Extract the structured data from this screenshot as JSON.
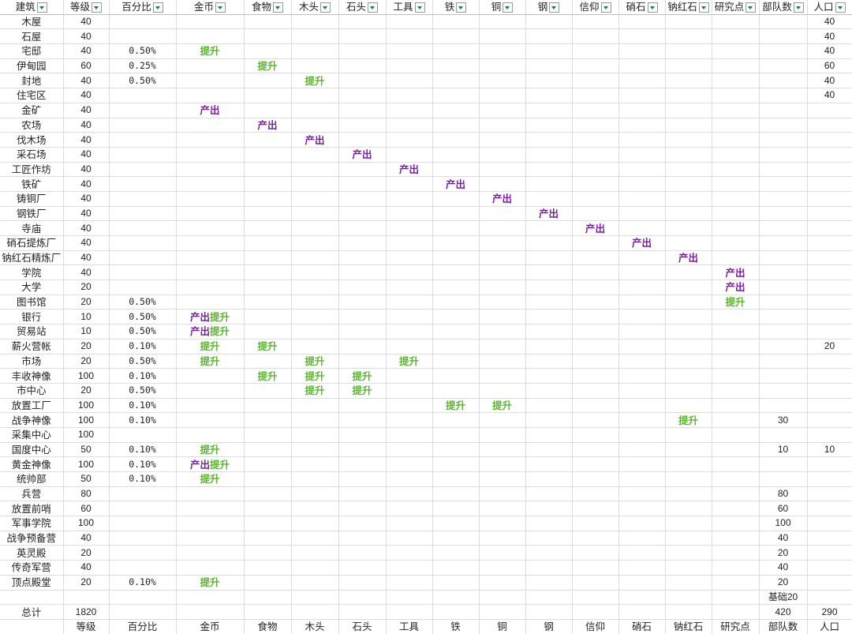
{
  "headers": [
    "建筑",
    "等级",
    "百分比",
    "金币",
    "食物",
    "木头",
    "石头",
    "工具",
    "铁",
    "铜",
    "钢",
    "信仰",
    "硝石",
    "钠红石",
    "研究点",
    "部队数",
    "人口"
  ],
  "footer_headers": [
    "",
    "等级",
    "百分比",
    "金币",
    "食物",
    "木头",
    "石头",
    "工具",
    "铁",
    "铜",
    "钢",
    "信仰",
    "硝石",
    "钠红石",
    "研究点",
    "部队数",
    "人口"
  ],
  "rows": [
    [
      "木屋",
      "40",
      "",
      "",
      "",
      "",
      "",
      "",
      "",
      "",
      "",
      "",
      "",
      "",
      "",
      "",
      "40"
    ],
    [
      "石屋",
      "40",
      "",
      "",
      "",
      "",
      "",
      "",
      "",
      "",
      "",
      "",
      "",
      "",
      "",
      "",
      "40"
    ],
    [
      "宅邸",
      "40",
      "0.50%",
      "提升",
      "",
      "",
      "",
      "",
      "",
      "",
      "",
      "",
      "",
      "",
      "",
      "",
      "40"
    ],
    [
      "伊甸园",
      "60",
      "0.25%",
      "",
      "提升",
      "",
      "",
      "",
      "",
      "",
      "",
      "",
      "",
      "",
      "",
      "",
      "60"
    ],
    [
      "封地",
      "40",
      "0.50%",
      "",
      "",
      "提升",
      "",
      "",
      "",
      "",
      "",
      "",
      "",
      "",
      "",
      "",
      "40"
    ],
    [
      "住宅区",
      "40",
      "",
      "",
      "",
      "",
      "",
      "",
      "",
      "",
      "",
      "",
      "",
      "",
      "",
      "",
      "40"
    ],
    [
      "金矿",
      "40",
      "",
      "产出",
      "",
      "",
      "",
      "",
      "",
      "",
      "",
      "",
      "",
      "",
      "",
      "",
      ""
    ],
    [
      "农场",
      "40",
      "",
      "",
      "产出",
      "",
      "",
      "",
      "",
      "",
      "",
      "",
      "",
      "",
      "",
      "",
      ""
    ],
    [
      "伐木场",
      "40",
      "",
      "",
      "",
      "产出",
      "",
      "",
      "",
      "",
      "",
      "",
      "",
      "",
      "",
      "",
      ""
    ],
    [
      "采石场",
      "40",
      "",
      "",
      "",
      "",
      "产出",
      "",
      "",
      "",
      "",
      "",
      "",
      "",
      "",
      "",
      ""
    ],
    [
      "工匠作坊",
      "40",
      "",
      "",
      "",
      "",
      "",
      "产出",
      "",
      "",
      "",
      "",
      "",
      "",
      "",
      "",
      ""
    ],
    [
      "铁矿",
      "40",
      "",
      "",
      "",
      "",
      "",
      "",
      "产出",
      "",
      "",
      "",
      "",
      "",
      "",
      "",
      ""
    ],
    [
      "铸铜厂",
      "40",
      "",
      "",
      "",
      "",
      "",
      "",
      "",
      "产出",
      "",
      "",
      "",
      "",
      "",
      "",
      ""
    ],
    [
      "钢铁厂",
      "40",
      "",
      "",
      "",
      "",
      "",
      "",
      "",
      "",
      "产出",
      "",
      "",
      "",
      "",
      "",
      ""
    ],
    [
      "寺庙",
      "40",
      "",
      "",
      "",
      "",
      "",
      "",
      "",
      "",
      "",
      "产出",
      "",
      "",
      "",
      "",
      ""
    ],
    [
      "硝石提炼厂",
      "40",
      "",
      "",
      "",
      "",
      "",
      "",
      "",
      "",
      "",
      "",
      "产出",
      "",
      "",
      "",
      ""
    ],
    [
      "钠红石精炼厂",
      "40",
      "",
      "",
      "",
      "",
      "",
      "",
      "",
      "",
      "",
      "",
      "",
      "产出",
      "",
      "",
      ""
    ],
    [
      "学院",
      "40",
      "",
      "",
      "",
      "",
      "",
      "",
      "",
      "",
      "",
      "",
      "",
      "",
      "产出",
      "",
      ""
    ],
    [
      "大学",
      "20",
      "",
      "",
      "",
      "",
      "",
      "",
      "",
      "",
      "",
      "",
      "",
      "",
      "产出",
      "",
      ""
    ],
    [
      "图书馆",
      "20",
      "0.50%",
      "",
      "",
      "",
      "",
      "",
      "",
      "",
      "",
      "",
      "",
      "",
      "提升",
      "",
      ""
    ],
    [
      "银行",
      "10",
      "0.50%",
      "产出提升",
      "",
      "",
      "",
      "",
      "",
      "",
      "",
      "",
      "",
      "",
      "",
      "",
      ""
    ],
    [
      "贸易站",
      "10",
      "0.50%",
      "产出提升",
      "",
      "",
      "",
      "",
      "",
      "",
      "",
      "",
      "",
      "",
      "",
      "",
      ""
    ],
    [
      "薪火营帐",
      "20",
      "0.10%",
      "提升",
      "提升",
      "",
      "",
      "",
      "",
      "",
      "",
      "",
      "",
      "",
      "",
      "",
      "20"
    ],
    [
      "市场",
      "20",
      "0.50%",
      "提升",
      "",
      "提升",
      "",
      "提升",
      "",
      "",
      "",
      "",
      "",
      "",
      "",
      "",
      ""
    ],
    [
      "丰收神像",
      "100",
      "0.10%",
      "",
      "提升",
      "提升",
      "提升",
      "",
      "",
      "",
      "",
      "",
      "",
      "",
      "",
      "",
      ""
    ],
    [
      "市中心",
      "20",
      "0.50%",
      "",
      "",
      "提升",
      "提升",
      "",
      "",
      "",
      "",
      "",
      "",
      "",
      "",
      "",
      ""
    ],
    [
      "放置工厂",
      "100",
      "0.10%",
      "",
      "",
      "",
      "",
      "",
      "提升",
      "提升",
      "",
      "",
      "",
      "",
      "",
      "",
      ""
    ],
    [
      "战争神像",
      "100",
      "0.10%",
      "",
      "",
      "",
      "",
      "",
      "",
      "",
      "",
      "",
      "",
      "提升",
      "",
      "30",
      ""
    ],
    [
      "采集中心",
      "100",
      "",
      "",
      "",
      "",
      "",
      "",
      "",
      "",
      "",
      "",
      "",
      "",
      "",
      "",
      ""
    ],
    [
      "国度中心",
      "50",
      "0.10%",
      "提升",
      "",
      "",
      "",
      "",
      "",
      "",
      "",
      "",
      "",
      "",
      "",
      "10",
      "10"
    ],
    [
      "黄金神像",
      "100",
      "0.10%",
      "产出提升",
      "",
      "",
      "",
      "",
      "",
      "",
      "",
      "",
      "",
      "",
      "",
      "",
      ""
    ],
    [
      "统帅部",
      "50",
      "0.10%",
      "提升",
      "",
      "",
      "",
      "",
      "",
      "",
      "",
      "",
      "",
      "",
      "",
      "",
      ""
    ],
    [
      "兵营",
      "80",
      "",
      "",
      "",
      "",
      "",
      "",
      "",
      "",
      "",
      "",
      "",
      "",
      "",
      "80",
      ""
    ],
    [
      "放置前哨",
      "60",
      "",
      "",
      "",
      "",
      "",
      "",
      "",
      "",
      "",
      "",
      "",
      "",
      "",
      "60",
      ""
    ],
    [
      "军事学院",
      "100",
      "",
      "",
      "",
      "",
      "",
      "",
      "",
      "",
      "",
      "",
      "",
      "",
      "",
      "100",
      ""
    ],
    [
      "战争预备营",
      "40",
      "",
      "",
      "",
      "",
      "",
      "",
      "",
      "",
      "",
      "",
      "",
      "",
      "",
      "40",
      ""
    ],
    [
      "英灵殿",
      "20",
      "",
      "",
      "",
      "",
      "",
      "",
      "",
      "",
      "",
      "",
      "",
      "",
      "",
      "20",
      ""
    ],
    [
      "传奇军营",
      "40",
      "",
      "",
      "",
      "",
      "",
      "",
      "",
      "",
      "",
      "",
      "",
      "",
      "",
      "40",
      ""
    ],
    [
      "顶点殿堂",
      "20",
      "0.10%",
      "提升",
      "",
      "",
      "",
      "",
      "",
      "",
      "",
      "",
      "",
      "",
      "",
      "20",
      ""
    ],
    [
      "",
      "",
      "",
      "",
      "",
      "",
      "",
      "",
      "",
      "",
      "",
      "",
      "",
      "",
      "",
      "基础20",
      ""
    ],
    [
      "总计",
      "1820",
      "",
      "",
      "",
      "",
      "",
      "",
      "",
      "",
      "",
      "",
      "",
      "",
      "",
      "420",
      "290"
    ]
  ],
  "colors": {
    "produce": "#7a1fa2",
    "boost": "#5cb531",
    "filter_arrow": "#1e7a3b"
  }
}
